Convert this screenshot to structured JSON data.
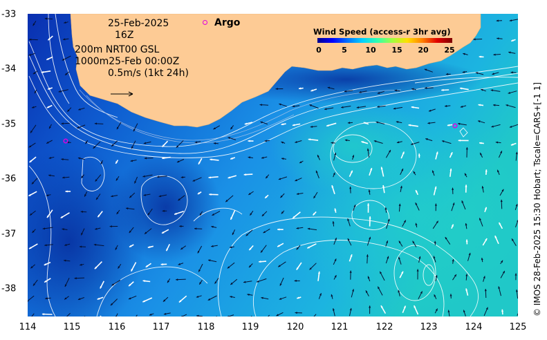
{
  "map": {
    "x_ticks": [
      "114",
      "115",
      "116",
      "117",
      "118",
      "119",
      "120",
      "121",
      "122",
      "123",
      "124",
      "125"
    ],
    "y_ticks": [
      "-33",
      "-34",
      "-35",
      "-36",
      "-37",
      "-38"
    ],
    "info_lines": [
      "25-Feb-2025",
      "16Z",
      "200m  NRT00 GSL",
      "1000m25-Feb 00:00Z",
      "0.5m/s (1kt 24h)"
    ],
    "argo_label": "Argo",
    "colorbar_title": "Wind Speed (access-r 3hr avg)",
    "colorbar_ticks": [
      "0",
      "5",
      "10",
      "15",
      "20",
      "25"
    ],
    "side_caption": "© IMOS 28-Feb-2025 15:30 Hobart; Tscale=CARS+[-1 1]",
    "colors": {
      "land": "#fdcb95",
      "ocean_deep": "#0a3fc0",
      "ocean_mid": "#1e8ee0",
      "ocean_light": "#20c8d0",
      "argo_marker": "#e000e0"
    }
  }
}
